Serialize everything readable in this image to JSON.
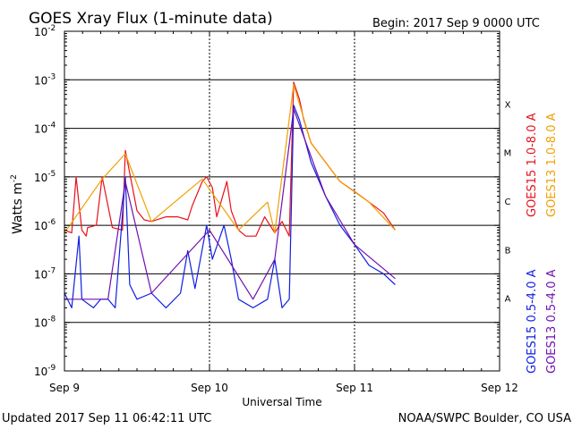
{
  "chart_data": {
    "type": "line",
    "title": "GOES Xray Flux (1-minute data)",
    "begin_label": "Begin:  2017 Sep 9 0000 UTC",
    "xlabel": "Universal Time",
    "ylabel": "Watts m",
    "ylabel_sup": "-2",
    "y_scale": "log",
    "ylim": [
      1e-09,
      0.01
    ],
    "y_ticks": [
      {
        "base": "10",
        "exp": "-2",
        "value": 0.01
      },
      {
        "base": "10",
        "exp": "-3",
        "value": 0.001
      },
      {
        "base": "10",
        "exp": "-4",
        "value": 0.0001
      },
      {
        "base": "10",
        "exp": "-5",
        "value": 1e-05
      },
      {
        "base": "10",
        "exp": "-6",
        "value": 1e-06
      },
      {
        "base": "10",
        "exp": "-7",
        "value": 1e-07
      },
      {
        "base": "10",
        "exp": "-8",
        "value": 1e-08
      },
      {
        "base": "10",
        "exp": "-9",
        "value": 1e-09
      }
    ],
    "gridlines": [
      0.001,
      0.0001,
      1e-05,
      1e-06,
      1e-07,
      1e-08
    ],
    "flare_classes": [
      {
        "label": "X",
        "value": 0.000316
      },
      {
        "label": "M",
        "value": 3.16e-05
      },
      {
        "label": "C",
        "value": 3.16e-06
      },
      {
        "label": "B",
        "value": 3.16e-07
      },
      {
        "label": "A",
        "value": 3.16e-08
      }
    ],
    "x_ticks": [
      "Sep 9",
      "Sep 10",
      "Sep 11",
      "Sep 12"
    ],
    "xlim_days": [
      0,
      3
    ],
    "series": [
      {
        "name": "GOES15 1.0-8.0 A",
        "color": "#e8101b",
        "x": [
          0.0,
          0.05,
          0.08,
          0.12,
          0.15,
          0.16,
          0.22,
          0.26,
          0.33,
          0.4,
          0.42,
          0.5,
          0.55,
          0.6,
          0.7,
          0.78,
          0.85,
          0.88,
          0.95,
          0.98,
          1.02,
          1.05,
          1.12,
          1.15,
          1.2,
          1.25,
          1.32,
          1.38,
          1.45,
          1.5,
          1.55,
          1.58,
          1.62,
          1.65,
          1.7,
          1.8,
          1.9,
          2.0,
          2.1,
          2.2,
          2.28
        ],
        "y": [
          8e-07,
          7e-07,
          1e-05,
          8e-07,
          6e-07,
          9e-07,
          1e-06,
          1e-05,
          9e-07,
          8e-07,
          3.5e-05,
          2e-06,
          1.3e-06,
          1.2e-06,
          1.5e-06,
          1.5e-06,
          1.3e-06,
          2.5e-06,
          8e-06,
          1e-05,
          6e-06,
          1.5e-06,
          8e-06,
          2e-06,
          8e-07,
          6e-07,
          6e-07,
          1.5e-06,
          7e-07,
          1.2e-06,
          6e-07,
          0.0009,
          0.0004,
          0.00015,
          5e-05,
          2e-05,
          8e-06,
          5e-06,
          3e-06,
          1.8e-06,
          8e-07
        ]
      },
      {
        "name": "GOES13 1.0-8.0 A",
        "color": "#f0a000",
        "x": [
          0.0,
          0.26,
          0.42,
          0.6,
          0.95,
          1.2,
          1.4,
          1.45,
          1.58,
          1.7,
          1.9,
          2.1,
          2.28
        ],
        "y": [
          7e-07,
          9e-06,
          3e-05,
          1.2e-06,
          9e-06,
          8e-07,
          3e-06,
          7e-07,
          0.0008,
          5e-05,
          8e-06,
          3e-06,
          8e-07
        ]
      },
      {
        "name": "GOES15 0.5-4.0 A",
        "color": "#1020e0",
        "x": [
          0.0,
          0.05,
          0.1,
          0.12,
          0.2,
          0.25,
          0.3,
          0.35,
          0.42,
          0.45,
          0.5,
          0.6,
          0.7,
          0.8,
          0.85,
          0.9,
          0.98,
          1.02,
          1.1,
          1.15,
          1.2,
          1.3,
          1.4,
          1.45,
          1.5,
          1.55,
          1.58,
          1.62,
          1.7,
          1.8,
          1.9,
          2.0,
          2.1,
          2.2,
          2.28
        ],
        "y": [
          4e-08,
          2e-08,
          6e-07,
          3e-08,
          2e-08,
          3e-08,
          3e-08,
          2e-08,
          1e-05,
          6e-08,
          3e-08,
          4e-08,
          2e-08,
          4e-08,
          3e-07,
          5e-08,
          1e-06,
          2e-07,
          1e-06,
          2e-07,
          3e-08,
          2e-08,
          3e-08,
          2e-07,
          2e-08,
          3e-08,
          0.0003,
          0.00015,
          2e-05,
          4e-06,
          1e-06,
          4e-07,
          1.5e-07,
          1e-07,
          6e-08
        ]
      },
      {
        "name": "GOES13 0.5-4.0 A",
        "color": "#7010b0",
        "x": [
          0.0,
          0.3,
          0.42,
          0.6,
          1.0,
          1.3,
          1.45,
          1.58,
          1.8,
          2.0,
          2.28
        ],
        "y": [
          3e-08,
          3e-08,
          8e-06,
          4e-08,
          8e-07,
          3e-08,
          2e-07,
          0.00025,
          4e-06,
          4e-07,
          8e-08
        ]
      }
    ]
  },
  "footer": {
    "updated": "Updated 2017 Sep 11 06:42:11 UTC",
    "source": "NOAA/SWPC Boulder, CO USA"
  }
}
